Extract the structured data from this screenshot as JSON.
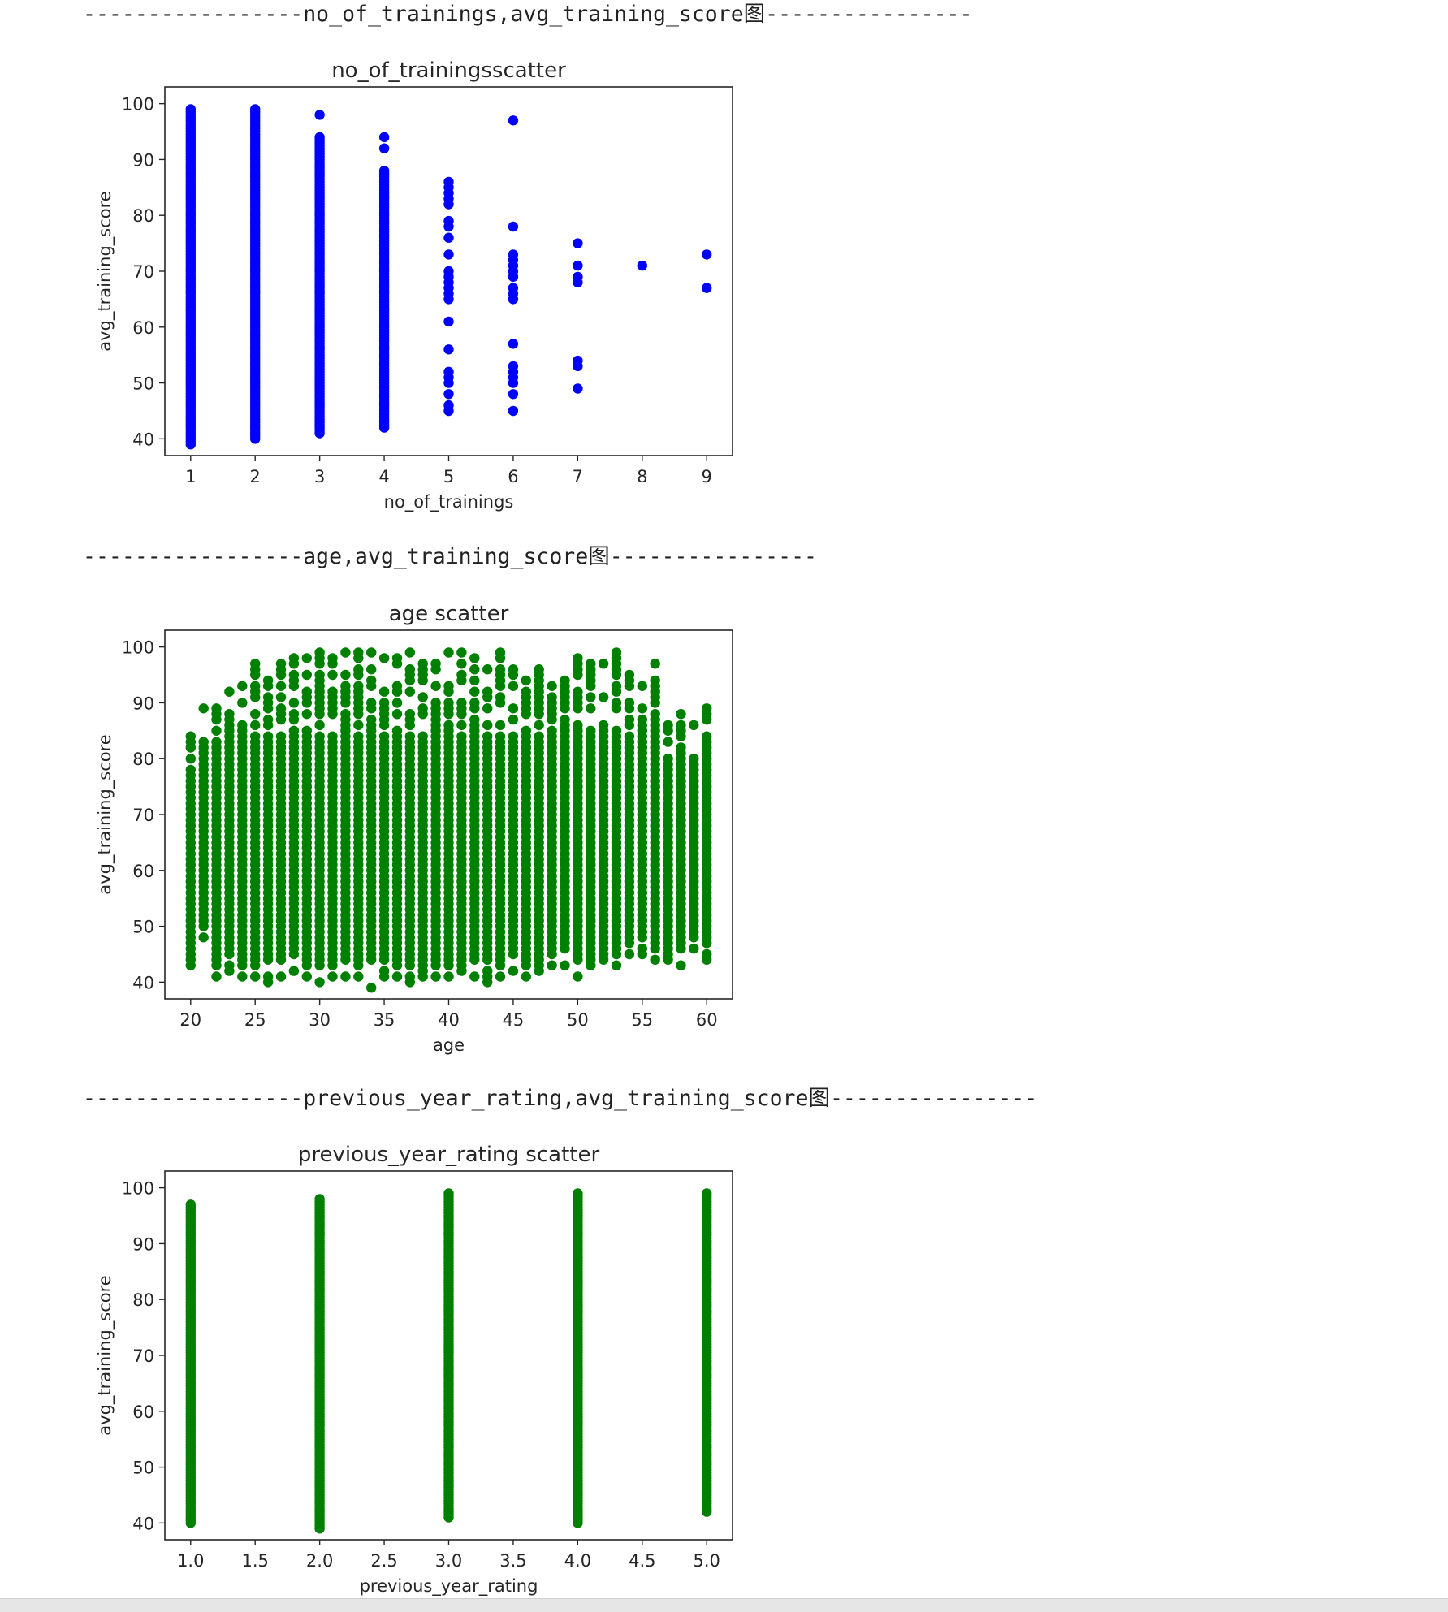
{
  "separators": [
    "-----------------no_of_trainings,avg_training_score图----------------",
    "-----------------age,avg_training_score图----------------",
    "-----------------previous_year_rating,avg_training_score图----------------"
  ],
  "chart_data": [
    {
      "type": "scatter",
      "title": "no_of_trainingsscatter",
      "xlabel": "no_of_trainings",
      "ylabel": "avg_training_score",
      "xlim": [
        0.6,
        9.4
      ],
      "ylim": [
        37,
        103
      ],
      "xticks": [
        1,
        2,
        3,
        4,
        5,
        6,
        7,
        8,
        9
      ],
      "yticks": [
        40,
        50,
        60,
        70,
        80,
        90,
        100
      ],
      "color": "#0000ff",
      "points": [
        {
          "x": 1,
          "y_range": [
            39,
            99
          ]
        },
        {
          "x": 2,
          "y_range": [
            40,
            99
          ]
        },
        {
          "x": 3,
          "y_range": [
            41,
            94
          ]
        },
        {
          "x": 3,
          "y": 98
        },
        {
          "x": 4,
          "y_range": [
            42,
            88
          ]
        },
        {
          "x": 4,
          "y": 92
        },
        {
          "x": 4,
          "y": 94
        },
        {
          "x": 5,
          "y": 45
        },
        {
          "x": 5,
          "y": 46
        },
        {
          "x": 5,
          "y": 48
        },
        {
          "x": 5,
          "y": 50
        },
        {
          "x": 5,
          "y": 51
        },
        {
          "x": 5,
          "y": 52
        },
        {
          "x": 5,
          "y": 56
        },
        {
          "x": 5,
          "y": 61
        },
        {
          "x": 5,
          "y": 65
        },
        {
          "x": 5,
          "y": 66
        },
        {
          "x": 5,
          "y": 67
        },
        {
          "x": 5,
          "y": 68
        },
        {
          "x": 5,
          "y": 69
        },
        {
          "x": 5,
          "y": 70
        },
        {
          "x": 5,
          "y": 73
        },
        {
          "x": 5,
          "y": 76
        },
        {
          "x": 5,
          "y": 78
        },
        {
          "x": 5,
          "y": 79
        },
        {
          "x": 5,
          "y": 82
        },
        {
          "x": 5,
          "y": 83
        },
        {
          "x": 5,
          "y": 84
        },
        {
          "x": 5,
          "y": 85
        },
        {
          "x": 5,
          "y": 86
        },
        {
          "x": 6,
          "y": 45
        },
        {
          "x": 6,
          "y": 48
        },
        {
          "x": 6,
          "y": 50
        },
        {
          "x": 6,
          "y": 51
        },
        {
          "x": 6,
          "y": 52
        },
        {
          "x": 6,
          "y": 53
        },
        {
          "x": 6,
          "y": 57
        },
        {
          "x": 6,
          "y": 65
        },
        {
          "x": 6,
          "y": 66
        },
        {
          "x": 6,
          "y": 67
        },
        {
          "x": 6,
          "y": 69
        },
        {
          "x": 6,
          "y": 70
        },
        {
          "x": 6,
          "y": 71
        },
        {
          "x": 6,
          "y": 72
        },
        {
          "x": 6,
          "y": 73
        },
        {
          "x": 6,
          "y": 78
        },
        {
          "x": 6,
          "y": 97
        },
        {
          "x": 7,
          "y": 49
        },
        {
          "x": 7,
          "y": 53
        },
        {
          "x": 7,
          "y": 54
        },
        {
          "x": 7,
          "y": 68
        },
        {
          "x": 7,
          "y": 69
        },
        {
          "x": 7,
          "y": 71
        },
        {
          "x": 7,
          "y": 75
        },
        {
          "x": 8,
          "y": 71
        },
        {
          "x": 9,
          "y": 67
        },
        {
          "x": 9,
          "y": 73
        }
      ]
    },
    {
      "type": "scatter",
      "title": "age scatter",
      "xlabel": "age",
      "ylabel": "avg_training_score",
      "xlim": [
        18,
        62
      ],
      "ylim": [
        37,
        103
      ],
      "xticks": [
        20,
        25,
        30,
        35,
        40,
        45,
        50,
        55,
        60
      ],
      "yticks": [
        40,
        50,
        60,
        70,
        80,
        90,
        100
      ],
      "color": "#008000",
      "columns": [
        {
          "x": 20,
          "min": 43,
          "max": 84
        },
        {
          "x": 21,
          "min": 48,
          "max": 89
        },
        {
          "x": 22,
          "min": 41,
          "max": 89
        },
        {
          "x": 23,
          "min": 42,
          "max": 92
        },
        {
          "x": 24,
          "min": 41,
          "max": 93
        },
        {
          "x": 25,
          "min": 41,
          "max": 97
        },
        {
          "x": 26,
          "min": 40,
          "max": 94
        },
        {
          "x": 27,
          "min": 41,
          "max": 97
        },
        {
          "x": 28,
          "min": 42,
          "max": 98
        },
        {
          "x": 29,
          "min": 41,
          "max": 98
        },
        {
          "x": 30,
          "min": 40,
          "max": 99
        },
        {
          "x": 31,
          "min": 41,
          "max": 98
        },
        {
          "x": 32,
          "min": 41,
          "max": 99
        },
        {
          "x": 33,
          "min": 41,
          "max": 99
        },
        {
          "x": 34,
          "min": 39,
          "max": 99
        },
        {
          "x": 35,
          "min": 41,
          "max": 98
        },
        {
          "x": 36,
          "min": 41,
          "max": 98
        },
        {
          "x": 37,
          "min": 40,
          "max": 99
        },
        {
          "x": 38,
          "min": 41,
          "max": 97
        },
        {
          "x": 39,
          "min": 41,
          "max": 97
        },
        {
          "x": 40,
          "min": 41,
          "max": 99
        },
        {
          "x": 41,
          "min": 42,
          "max": 99
        },
        {
          "x": 42,
          "min": 41,
          "max": 98
        },
        {
          "x": 43,
          "min": 40,
          "max": 96
        },
        {
          "x": 44,
          "min": 41,
          "max": 99
        },
        {
          "x": 45,
          "min": 42,
          "max": 96
        },
        {
          "x": 46,
          "min": 41,
          "max": 94
        },
        {
          "x": 47,
          "min": 42,
          "max": 96
        },
        {
          "x": 48,
          "min": 43,
          "max": 93
        },
        {
          "x": 49,
          "min": 43,
          "max": 94
        },
        {
          "x": 50,
          "min": 41,
          "max": 98
        },
        {
          "x": 51,
          "min": 43,
          "max": 97
        },
        {
          "x": 52,
          "min": 44,
          "max": 97
        },
        {
          "x": 53,
          "min": 43,
          "max": 99
        },
        {
          "x": 54,
          "min": 45,
          "max": 95
        },
        {
          "x": 55,
          "min": 45,
          "max": 93
        },
        {
          "x": 56,
          "min": 44,
          "max": 97
        },
        {
          "x": 57,
          "min": 44,
          "max": 86
        },
        {
          "x": 58,
          "min": 43,
          "max": 88
        },
        {
          "x": 59,
          "min": 46,
          "max": 86
        },
        {
          "x": 60,
          "min": 44,
          "max": 89
        }
      ]
    },
    {
      "type": "scatter",
      "title": "previous_year_rating scatter",
      "xlabel": "previous_year_rating",
      "ylabel": "avg_training_score",
      "xlim": [
        0.8,
        5.2
      ],
      "ylim": [
        37,
        103
      ],
      "xticks": [
        "1.0",
        "1.5",
        "2.0",
        "2.5",
        "3.0",
        "3.5",
        "4.0",
        "4.5",
        "5.0"
      ],
      "yticks": [
        40,
        50,
        60,
        70,
        80,
        90,
        100
      ],
      "color": "#008000",
      "points": [
        {
          "x": 1,
          "y_range": [
            40,
            97
          ]
        },
        {
          "x": 2,
          "y_range": [
            39,
            98
          ]
        },
        {
          "x": 3,
          "y_range": [
            41,
            99
          ]
        },
        {
          "x": 4,
          "y_range": [
            40,
            99
          ]
        },
        {
          "x": 5,
          "y_range": [
            42,
            99
          ]
        }
      ]
    }
  ]
}
